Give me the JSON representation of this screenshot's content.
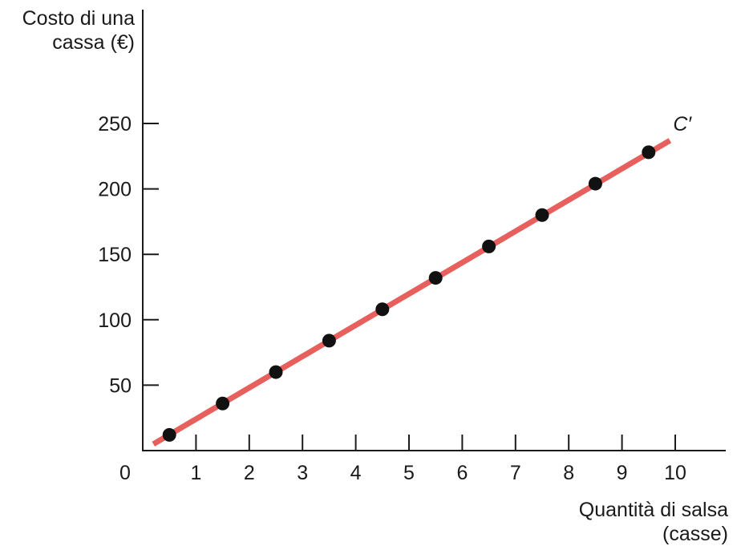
{
  "chart_data": {
    "type": "line",
    "title": "",
    "ylabel_lines": [
      "Costo di una",
      "cassa (€)"
    ],
    "xlabel_lines": [
      "Quantità di salsa",
      "(casse)"
    ],
    "x_ticks": [
      "0",
      "1",
      "2",
      "3",
      "4",
      "5",
      "6",
      "7",
      "8",
      "9",
      "10"
    ],
    "y_ticks": [
      "50",
      "100",
      "150",
      "200",
      "250"
    ],
    "xlim": [
      0,
      11
    ],
    "ylim": [
      0,
      300
    ],
    "line_label": "C′",
    "line_color": "#e8605e",
    "point_color": "#111111",
    "series": [
      {
        "x": [
          0.5,
          1.5,
          2.5,
          3.5,
          4.5,
          5.5,
          6.5,
          7.5,
          8.5,
          9.5
        ],
        "y": [
          12,
          36,
          60,
          84,
          108,
          132,
          156,
          180,
          204,
          228
        ]
      }
    ],
    "line_segment": {
      "x": [
        0.2,
        9.9
      ],
      "y": [
        5,
        237
      ]
    }
  }
}
